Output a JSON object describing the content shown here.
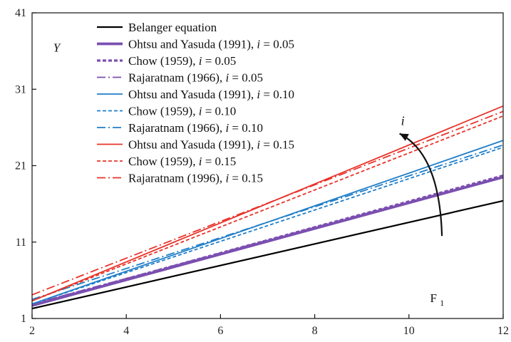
{
  "chart_data": {
    "type": "line",
    "xlabel": "F",
    "xlabel_sub": "1",
    "ylabel": "Y",
    "xlim": [
      2,
      12
    ],
    "ylim": [
      1,
      41
    ],
    "xticks": [
      2,
      4,
      6,
      8,
      10,
      12
    ],
    "yticks": [
      1,
      11,
      21,
      31,
      41
    ],
    "grid": false,
    "legend_position": "top-left",
    "annotation": {
      "text": "i",
      "arrow_from": [
        10.7,
        11.8
      ],
      "arrow_to": [
        9.8,
        25.2
      ]
    },
    "series": [
      {
        "name": "Belanger equation",
        "color": "#000000",
        "dash": "solid",
        "width": 2.2,
        "x": [
          2,
          12
        ],
        "y": [
          2.3,
          16.4
        ]
      },
      {
        "name_prefix": "Ohtsu and Yasuda (1991), ",
        "name_italic": "i",
        "name_suffix": " = 0.05",
        "color": "#7B4FB0",
        "dash": "solid",
        "width": 3.8,
        "x": [
          2,
          12
        ],
        "y": [
          2.7,
          19.5
        ]
      },
      {
        "name_prefix": "Chow (1959), ",
        "name_italic": "i",
        "name_suffix": " = 0.05",
        "color": "#7B4FB0",
        "dash": "dash",
        "width": 3.2,
        "x": [
          2,
          12
        ],
        "y": [
          2.8,
          19.7
        ]
      },
      {
        "name_prefix": "Rajaratnam (1966), ",
        "name_italic": "i",
        "name_suffix": " = 0.05",
        "color": "#7B4FB0",
        "dash": "dashdot",
        "width": 1.8,
        "x": [
          2,
          12
        ],
        "y": [
          2.9,
          19.6
        ]
      },
      {
        "name_prefix": "Ohtsu and Yasuda (1991), ",
        "name_italic": "i",
        "name_suffix": " = 0.10",
        "color": "#1F7EC8",
        "dash": "solid",
        "width": 1.8,
        "x": [
          2,
          12
        ],
        "y": [
          2.9,
          24.3
        ]
      },
      {
        "name_prefix": "Chow (1959), ",
        "name_italic": "i",
        "name_suffix": " = 0.10",
        "color": "#1F7EC8",
        "dash": "dash",
        "width": 1.8,
        "x": [
          2,
          12
        ],
        "y": [
          2.9,
          23.4
        ]
      },
      {
        "name_prefix": "Rajaratnam (1966), ",
        "name_italic": "i",
        "name_suffix": " = 0.10",
        "color": "#1F7EC8",
        "dash": "dashdot",
        "width": 1.8,
        "x": [
          2,
          12
        ],
        "y": [
          3.5,
          23.7
        ]
      },
      {
        "name_prefix": "Ohtsu and Yasuda (1991), ",
        "name_italic": "i",
        "name_suffix": " = 0.15",
        "color": "#E8332A",
        "dash": "solid",
        "width": 1.8,
        "x": [
          2,
          12
        ],
        "y": [
          3.3,
          28.8
        ]
      },
      {
        "name_prefix": "Chow (1959), ",
        "name_italic": "i",
        "name_suffix": " = 0.15",
        "color": "#E8332A",
        "dash": "dash",
        "width": 1.8,
        "x": [
          2,
          12
        ],
        "y": [
          3.3,
          27.5
        ]
      },
      {
        "name_prefix": "Rajaratnam (1996), ",
        "name_italic": "i",
        "name_suffix": " = 0.15",
        "color": "#E8332A",
        "dash": "dashdot",
        "width": 1.8,
        "x": [
          2,
          12
        ],
        "y": [
          4.1,
          28.1
        ]
      }
    ]
  }
}
